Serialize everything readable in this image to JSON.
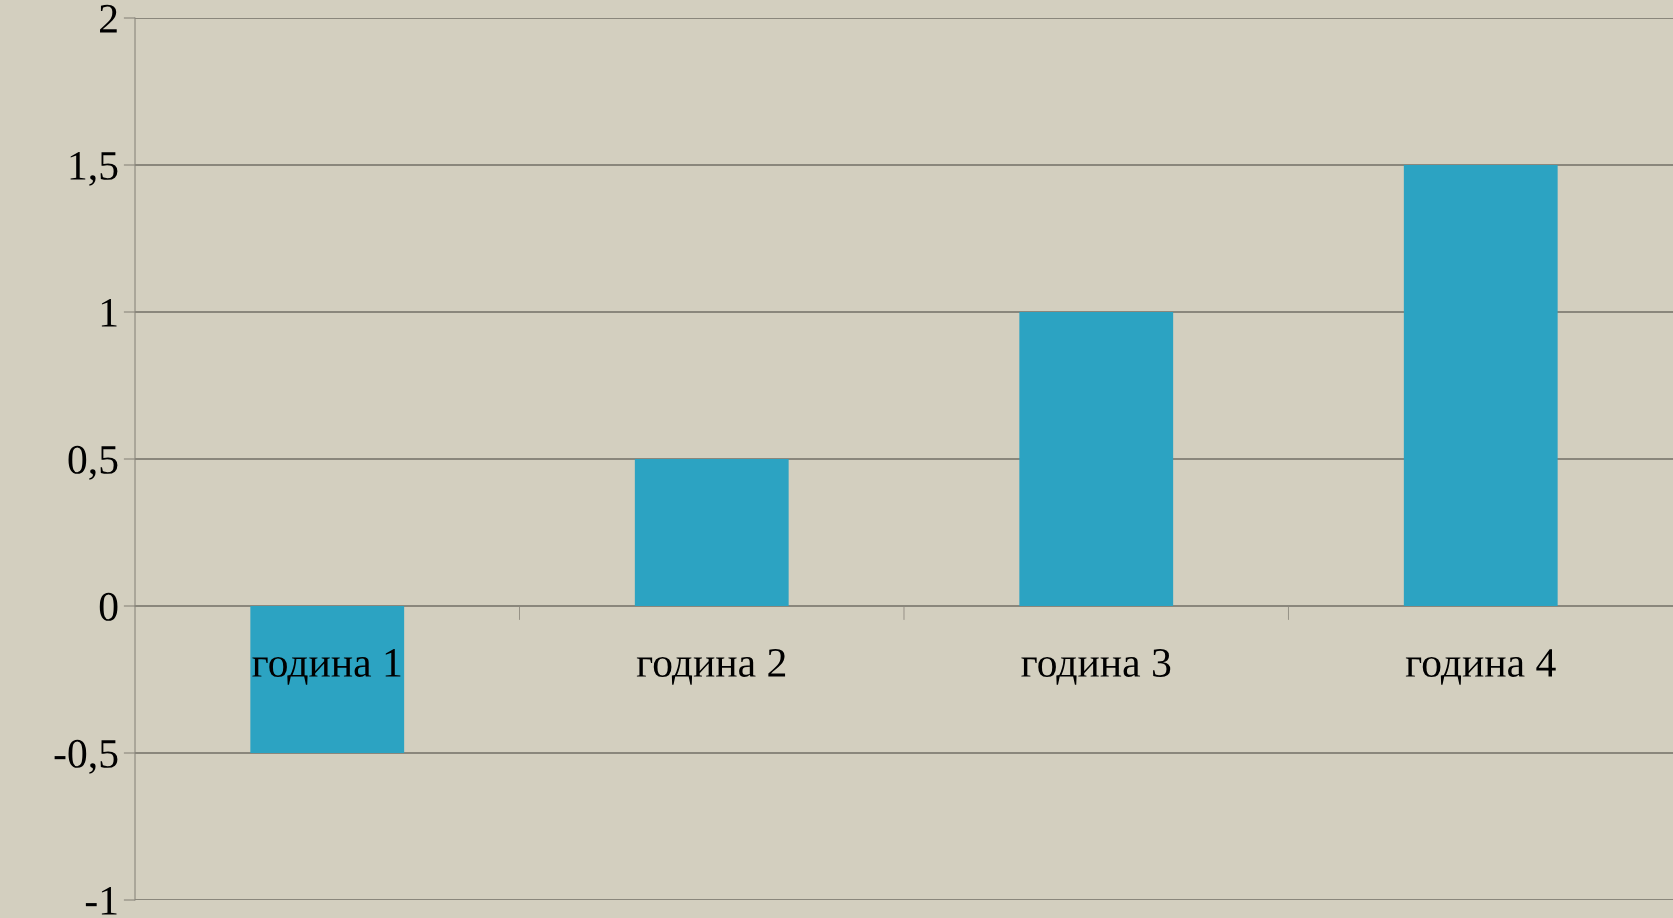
{
  "chart_data": {
    "type": "bar",
    "categories": [
      "година 1",
      "година 2",
      "година 3",
      "година 4"
    ],
    "values": [
      -0.5,
      0.5,
      1,
      1.5
    ],
    "color": "#2ca3c2",
    "ylim": [
      -1,
      2
    ],
    "yticks": [
      {
        "value": -1,
        "label": "-1"
      },
      {
        "value": -0.5,
        "label": "-0,5"
      },
      {
        "value": 0,
        "label": "0"
      },
      {
        "value": 0.5,
        "label": "0,5"
      },
      {
        "value": 1,
        "label": "1"
      },
      {
        "value": 1.5,
        "label": "1,5"
      },
      {
        "value": 2,
        "label": "2"
      }
    ],
    "grid": "y",
    "legend": false
  }
}
